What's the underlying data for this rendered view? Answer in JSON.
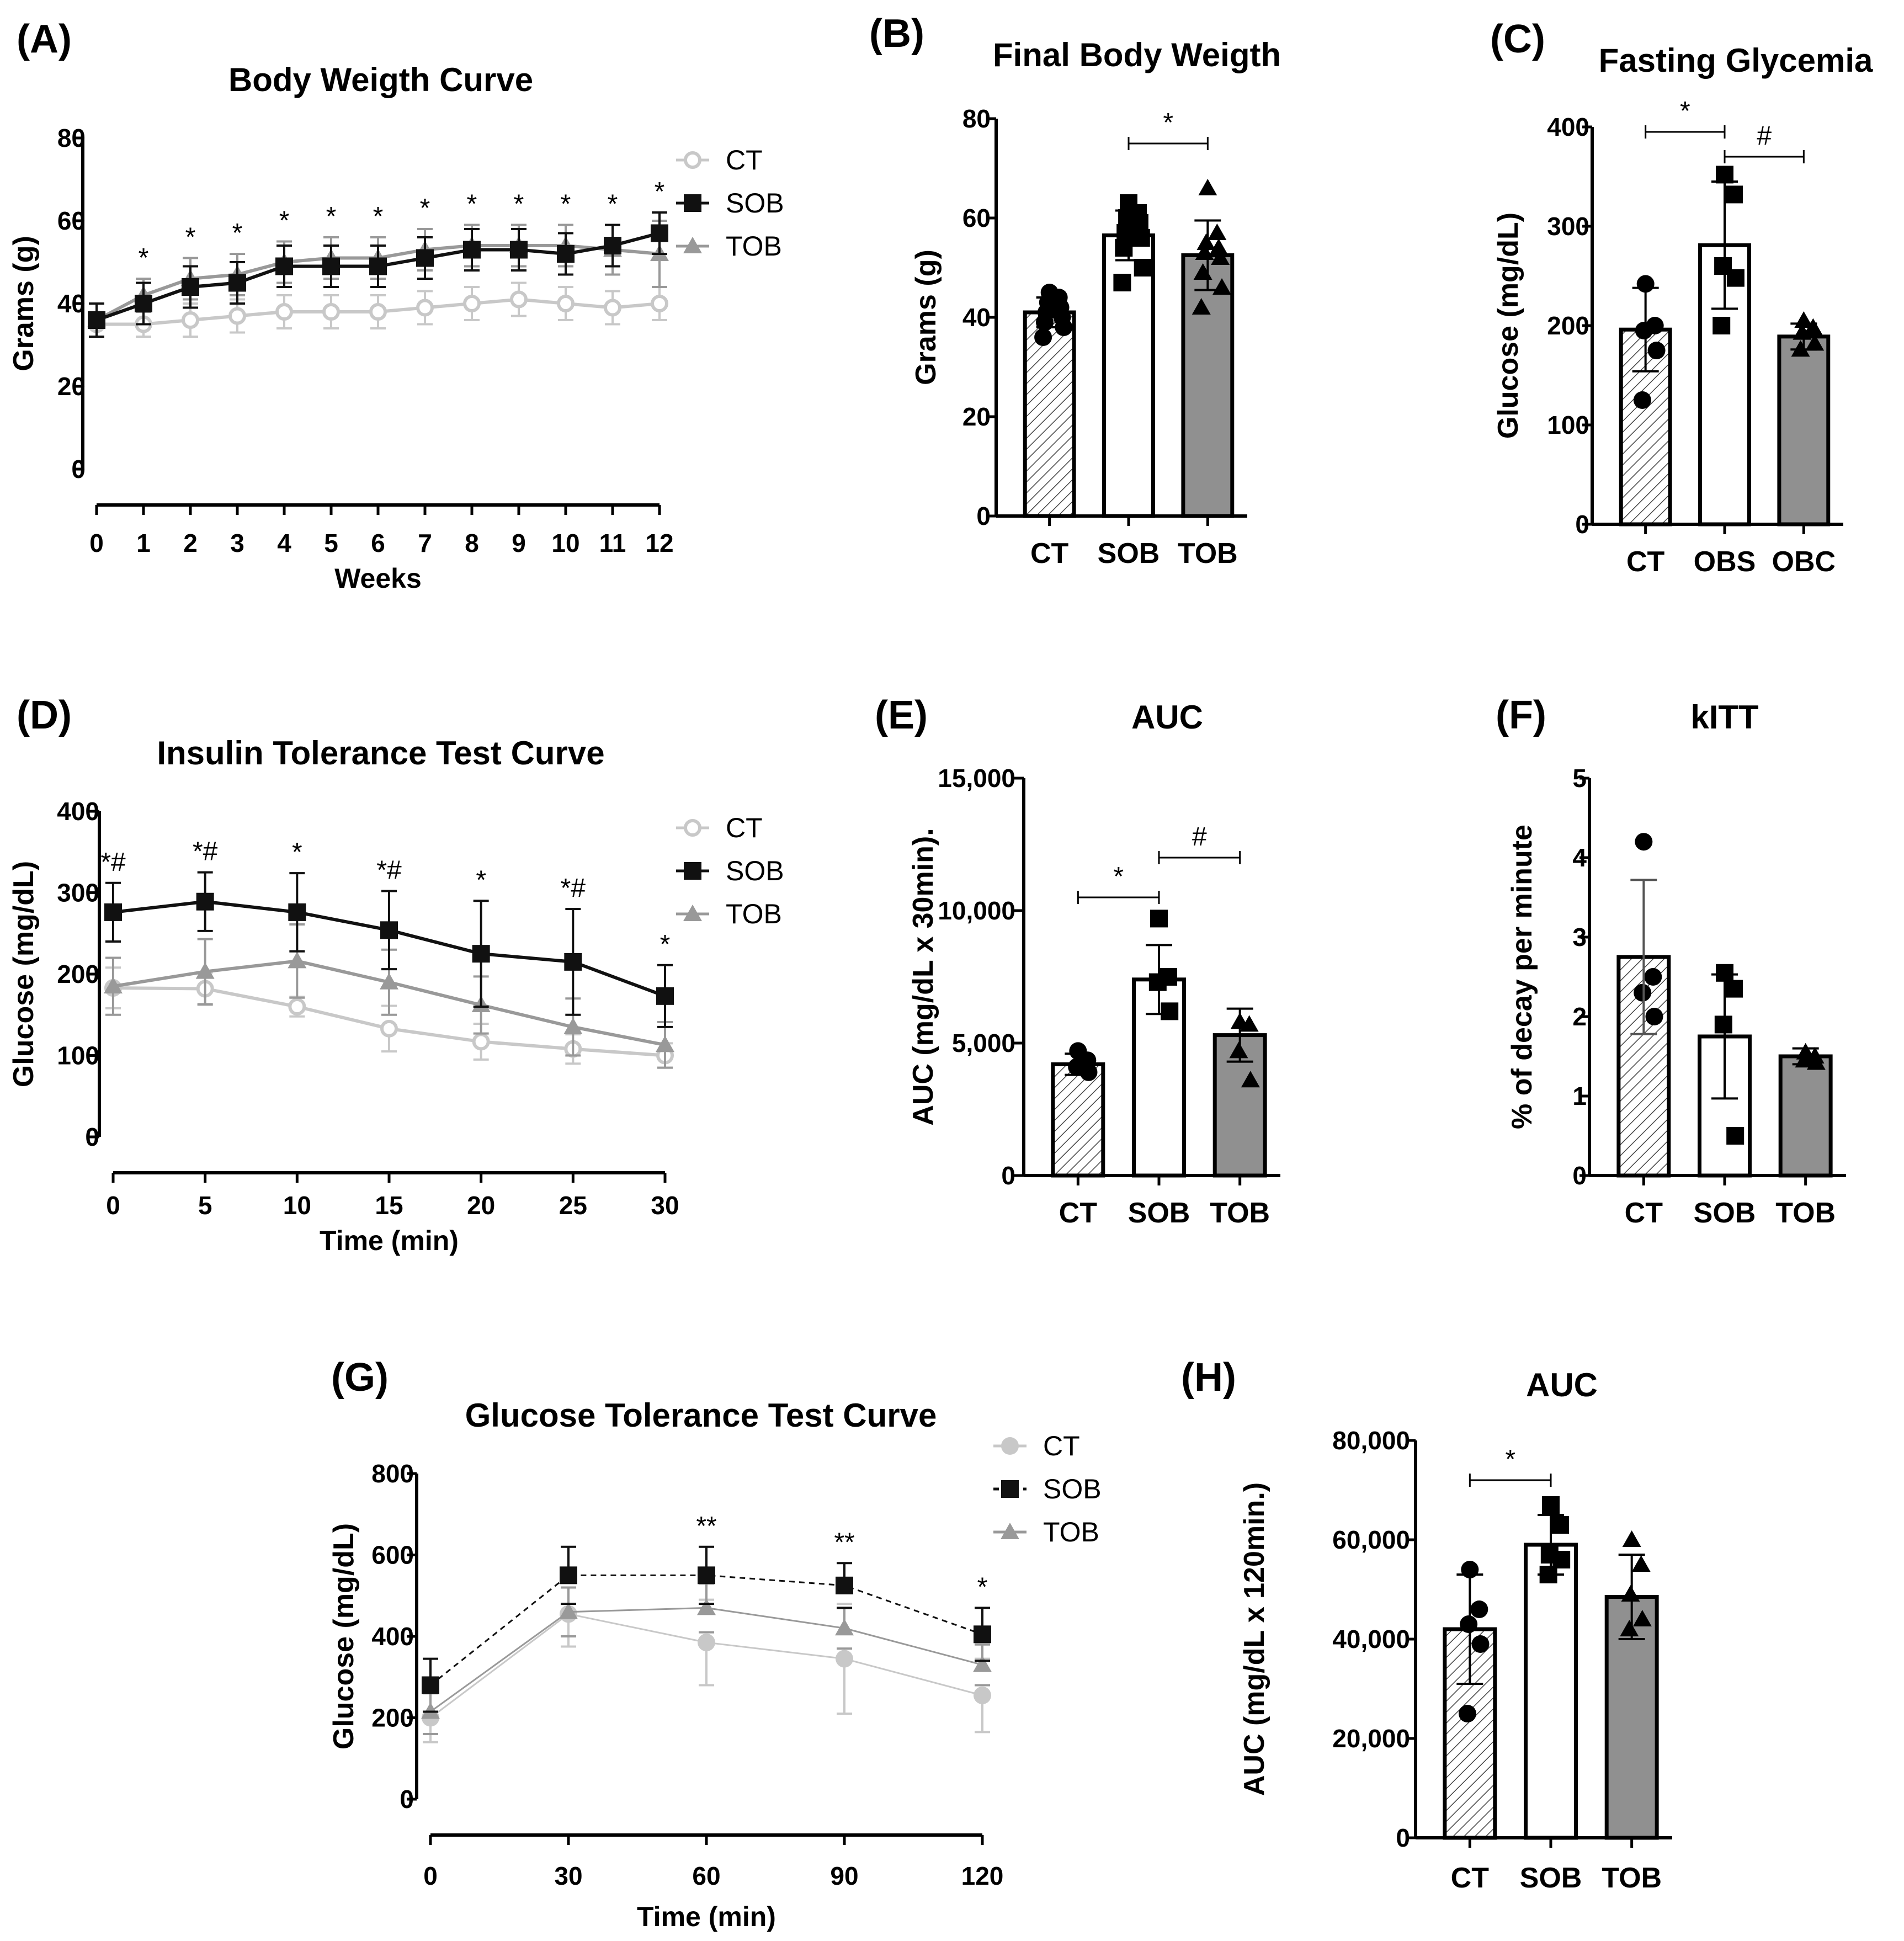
{
  "colors": {
    "CT": "#c8c8c8",
    "SOB": "#111111",
    "TOB": "#999999",
    "bar_TOB": "#909090",
    "bar_SOB": "#ffffff"
  },
  "chart_data": [
    {
      "id": "A",
      "label": "(A)",
      "type": "line",
      "title": "Body Weigth Curve",
      "xlabel": "Weeks",
      "ylabel": "Grams (g)",
      "x": [
        0,
        1,
        2,
        3,
        4,
        5,
        6,
        7,
        8,
        9,
        10,
        11,
        12
      ],
      "xticks": [
        "0",
        "1",
        "2",
        "3",
        "4",
        "5",
        "6",
        "7",
        "8",
        "9",
        "10",
        "11",
        "12"
      ],
      "ylim": [
        0,
        80
      ],
      "yticks": [
        0,
        20,
        40,
        60,
        80
      ],
      "series": [
        {
          "name": "CT",
          "marker": "open-circle",
          "values": [
            35,
            35,
            36,
            37,
            38,
            38,
            38,
            39,
            40,
            41,
            40,
            39,
            40
          ],
          "err": [
            3,
            3,
            4,
            4,
            4,
            4,
            4,
            4,
            4,
            4,
            4,
            4,
            4
          ]
        },
        {
          "name": "SOB",
          "marker": "square",
          "values": [
            36,
            40,
            44,
            45,
            49,
            49,
            49,
            51,
            53,
            53,
            52,
            54,
            57
          ],
          "err": [
            4,
            5,
            5,
            5,
            5,
            5,
            5,
            5,
            5,
            5,
            5,
            5,
            5
          ]
        },
        {
          "name": "TOB",
          "marker": "triangle",
          "values": [
            36,
            42,
            46,
            47,
            50,
            51,
            51,
            53,
            54,
            54,
            54,
            53,
            52
          ],
          "err": [
            4,
            4,
            5,
            5,
            5,
            5,
            5,
            5,
            5,
            5,
            5,
            6,
            8
          ]
        }
      ],
      "annotations": [
        "",
        "*",
        "*",
        "*",
        "*",
        "*",
        "*",
        "*",
        "*",
        "*",
        "*",
        "*",
        "*"
      ]
    },
    {
      "id": "B",
      "label": "(B)",
      "type": "bar",
      "title": "Final Body Weigth",
      "ylabel": "Grams (g)",
      "ylim": [
        0,
        80
      ],
      "yticks": [
        0,
        20,
        40,
        60,
        80
      ],
      "categories": [
        "CT",
        "SOB",
        "TOB"
      ],
      "values": [
        41,
        56.5,
        52.5
      ],
      "err": [
        3,
        5,
        7
      ],
      "points": [
        [
          45,
          44,
          43,
          42,
          41,
          40,
          39,
          38,
          36
        ],
        [
          63,
          61,
          60,
          59,
          57,
          56,
          54,
          50,
          47
        ],
        [
          66,
          57,
          55,
          54,
          53,
          52,
          49,
          46,
          42
        ]
      ],
      "brackets": [
        {
          "from": 1,
          "to": 2,
          "label": "*",
          "y": 75
        }
      ]
    },
    {
      "id": "C",
      "label": "(C)",
      "type": "bar",
      "title": "Fasting Glycemia",
      "ylabel": "Glucose (mg/dL)",
      "ylim": [
        0,
        400
      ],
      "yticks": [
        0,
        100,
        200,
        300,
        400
      ],
      "categories": [
        "CT",
        "OBS",
        "OBC"
      ],
      "values": [
        196,
        281,
        189
      ],
      "err": [
        42,
        64,
        13
      ],
      "points": [
        [
          242,
          200,
          195,
          175,
          125
        ],
        [
          352,
          332,
          260,
          248,
          200
        ],
        [
          205,
          198,
          193,
          182,
          176
        ]
      ],
      "brackets": [
        {
          "from": 0,
          "to": 1,
          "label": "*",
          "y": 395
        },
        {
          "from": 1,
          "to": 2,
          "label": "#",
          "y": 370
        }
      ]
    },
    {
      "id": "D",
      "label": "(D)",
      "type": "line",
      "title": "Insulin Tolerance Test Curve",
      "xlabel": "Time (min)",
      "ylabel": "Glucose (mg/dL)",
      "x": [
        0,
        5,
        10,
        15,
        20,
        25,
        30
      ],
      "xticks": [
        "0",
        "5",
        "10",
        "15",
        "20",
        "25",
        "30"
      ],
      "ylim": [
        0,
        400
      ],
      "yticks": [
        0,
        100,
        200,
        300,
        400
      ],
      "series": [
        {
          "name": "CT",
          "marker": "open-circle",
          "values": [
            183,
            182,
            160,
            133,
            117,
            108,
            100
          ],
          "err": [
            25,
            20,
            12,
            28,
            22,
            18,
            15
          ]
        },
        {
          "name": "SOB",
          "marker": "square",
          "values": [
            276,
            289,
            276,
            254,
            225,
            215,
            173
          ],
          "err": [
            36,
            36,
            48,
            48,
            65,
            65,
            38
          ]
        },
        {
          "name": "TOB",
          "marker": "triangle",
          "values": [
            185,
            203,
            216,
            190,
            162,
            135,
            113
          ],
          "err": [
            35,
            40,
            45,
            40,
            35,
            35,
            28
          ]
        }
      ],
      "annotations": [
        "*#",
        "*#",
        "*",
        "*#",
        "*",
        "*#",
        "*"
      ]
    },
    {
      "id": "E",
      "label": "(E)",
      "type": "bar",
      "title": "AUC",
      "ylabel": "AUC (mg/dL x 30min).",
      "ylim": [
        0,
        15000
      ],
      "yticks": [
        0,
        5000,
        10000,
        15000
      ],
      "yticklabels": [
        "0",
        "5,000",
        "10,000",
        "15,000"
      ],
      "categories": [
        "CT",
        "SOB",
        "TOB"
      ],
      "values": [
        4200,
        7400,
        5300
      ],
      "err": [
        400,
        1300,
        1000
      ],
      "points": [
        [
          4700,
          4350,
          4100,
          3900
        ],
        [
          9700,
          7500,
          7300,
          6200
        ],
        [
          5800,
          5700,
          4700,
          3600
        ]
      ],
      "brackets": [
        {
          "from": 0,
          "to": 1,
          "label": "*",
          "y": 10500
        },
        {
          "from": 1,
          "to": 2,
          "label": "#",
          "y": 12000
        }
      ]
    },
    {
      "id": "F",
      "label": "(F)",
      "type": "bar",
      "title": "kITT",
      "ylabel": "% of decay per minute",
      "ylim": [
        0,
        5
      ],
      "yticks": [
        0,
        1,
        2,
        3,
        4,
        5
      ],
      "categories": [
        "CT",
        "SOB",
        "TOB"
      ],
      "values": [
        2.75,
        1.75,
        1.5
      ],
      "err": [
        0.97,
        0.78,
        0.1
      ],
      "points": [
        [
          4.2,
          2.5,
          2.3,
          2.0
        ],
        [
          2.55,
          2.35,
          1.9,
          0.5
        ],
        [
          1.55,
          1.5,
          1.45,
          1.42
        ]
      ],
      "brackets": []
    },
    {
      "id": "G",
      "label": "(G)",
      "type": "line",
      "title": "Glucose Tolerance Test Curve",
      "xlabel": "Time (min)",
      "ylabel": "Glucose (mg/dL)",
      "x": [
        0,
        30,
        60,
        90,
        120
      ],
      "xticks": [
        "0",
        "30",
        "60",
        "90",
        "120"
      ],
      "ylim": [
        0,
        800
      ],
      "yticks": [
        0,
        200,
        400,
        600,
        800
      ],
      "series": [
        {
          "name": "CT",
          "marker": "filled-circle",
          "values": [
            200,
            455,
            385,
            345,
            255
          ],
          "err": [
            60,
            80,
            105,
            135,
            90
          ]
        },
        {
          "name": "SOB",
          "marker": "square",
          "dashed": true,
          "values": [
            280,
            550,
            550,
            525,
            405
          ],
          "err": [
            65,
            70,
            70,
            55,
            65
          ]
        },
        {
          "name": "TOB",
          "marker": "triangle",
          "values": [
            215,
            460,
            470,
            420,
            330
          ],
          "err": [
            55,
            60,
            60,
            50,
            50
          ]
        }
      ],
      "annotations": [
        "",
        "",
        "**",
        "**",
        "*"
      ]
    },
    {
      "id": "H",
      "label": "(H)",
      "type": "bar",
      "title": "AUC",
      "ylabel": "AUC (mg/dL x 120min.)",
      "ylim": [
        0,
        80000
      ],
      "yticks": [
        0,
        20000,
        40000,
        60000,
        80000
      ],
      "yticklabels": [
        "0",
        "20,000",
        "40,000",
        "60,000",
        "80,000"
      ],
      "categories": [
        "CT",
        "SOB",
        "TOB"
      ],
      "values": [
        42000,
        59000,
        48500
      ],
      "err": [
        11000,
        6000,
        8500
      ],
      "points": [
        [
          54000,
          46000,
          43000,
          39000,
          25000
        ],
        [
          67000,
          63000,
          57000,
          56000,
          53000
        ],
        [
          60000,
          55000,
          49000,
          44000,
          42000
        ]
      ],
      "brackets": [
        {
          "from": 0,
          "to": 1,
          "label": "*",
          "y": 72000
        }
      ]
    }
  ]
}
